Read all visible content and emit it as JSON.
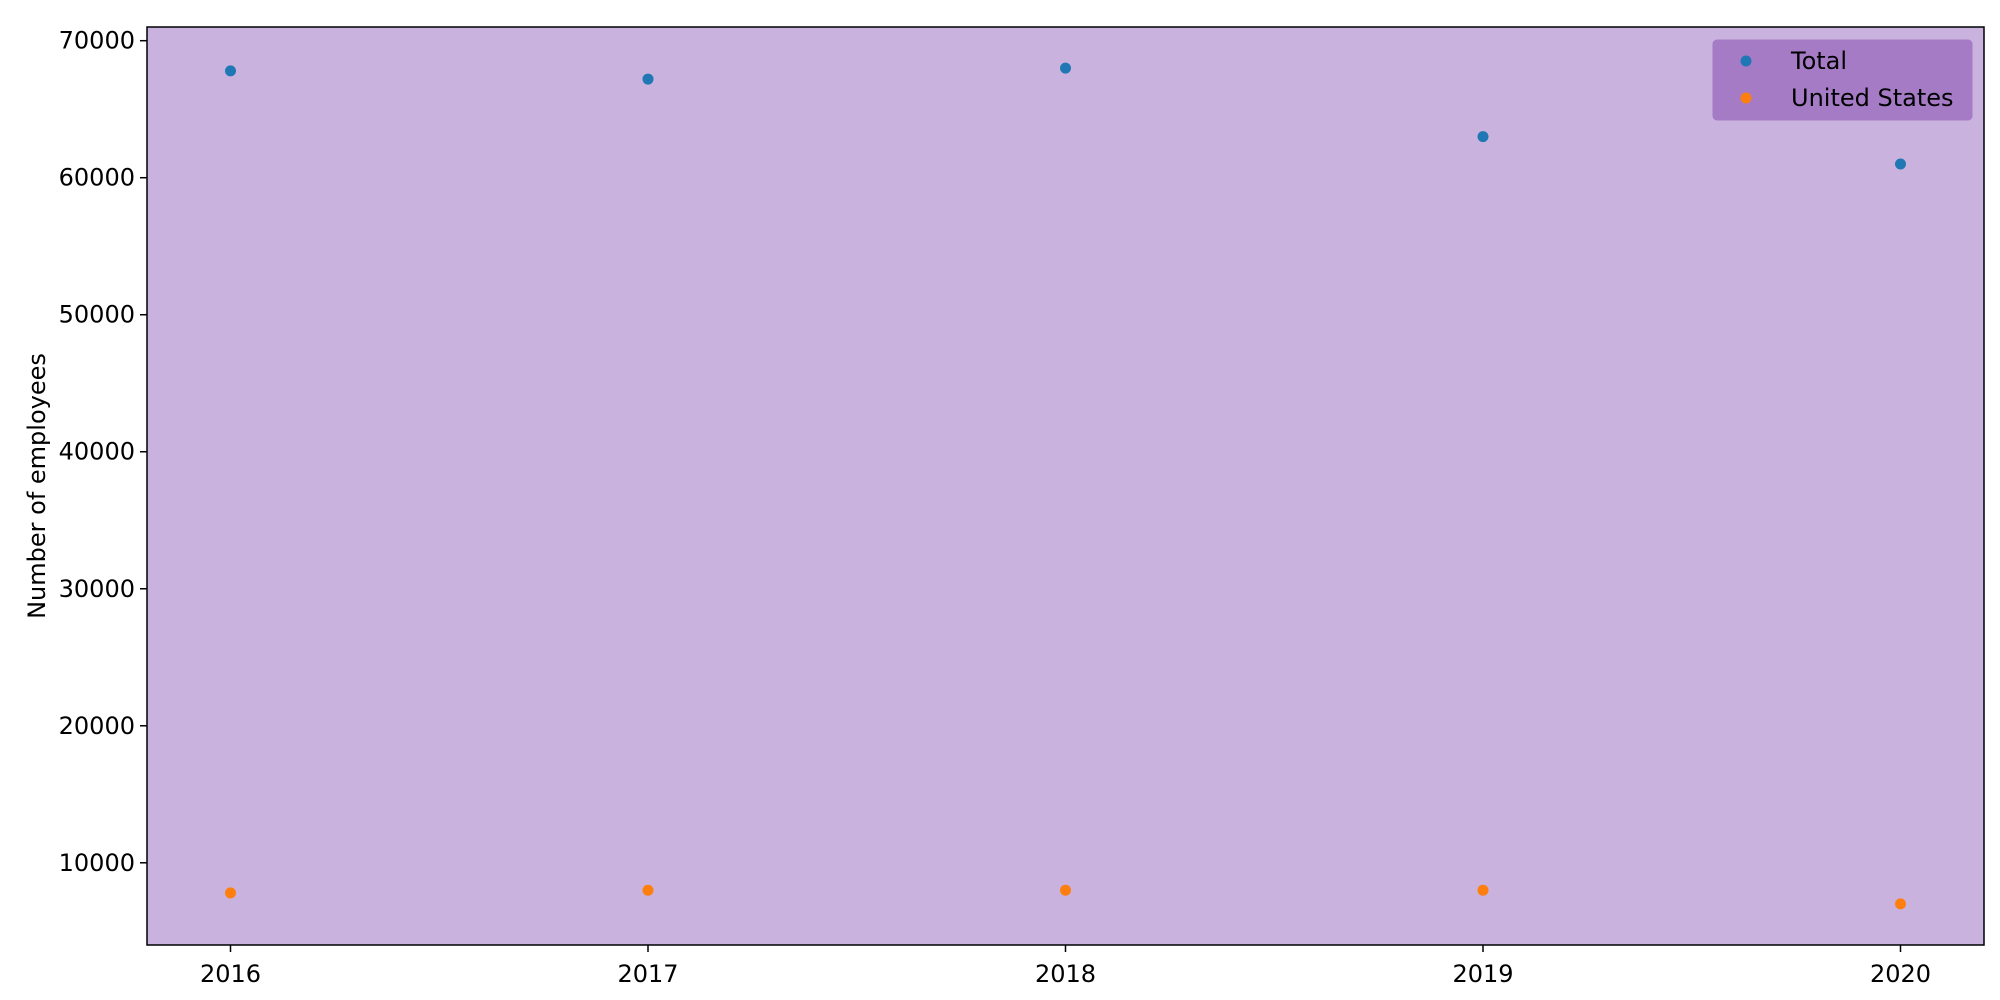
{
  "chart_data": {
    "type": "scatter",
    "title": "",
    "xlabel": "",
    "ylabel": "Number of employees",
    "x": [
      2016,
      2017,
      2018,
      2019,
      2020
    ],
    "xlim": [
      2015.8,
      2020.2
    ],
    "ylim": [
      4000,
      71000
    ],
    "xticks": [
      "2016",
      "2017",
      "2018",
      "2019",
      "2020"
    ],
    "yticks": [
      "10000",
      "20000",
      "30000",
      "40000",
      "50000",
      "60000",
      "70000"
    ],
    "grid": false,
    "legend_position": "top-right",
    "series": [
      {
        "name": "Total",
        "color": "#1f77b4",
        "values": [
          67800,
          67200,
          68000,
          63000,
          61000
        ]
      },
      {
        "name": "United States",
        "color": "#ff7f0e",
        "values": [
          7800,
          8000,
          8000,
          8000,
          7000
        ]
      }
    ],
    "plot_background": "#c9b2de",
    "legend_background": "#a57bc6"
  }
}
